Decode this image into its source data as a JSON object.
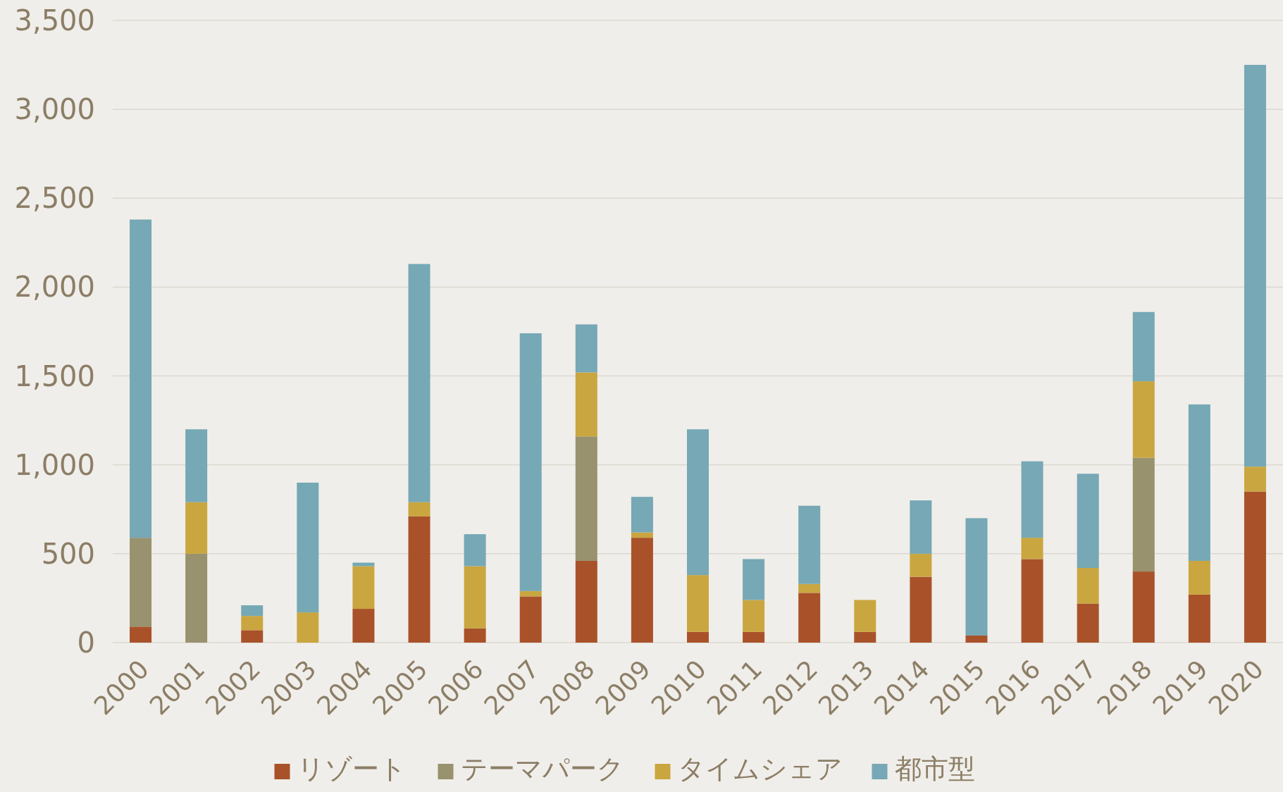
{
  "chart_data": {
    "type": "bar",
    "stacked": true,
    "legend": "bottom",
    "grid": "y",
    "categories": [
      "2000",
      "2001",
      "2002",
      "2003",
      "2004",
      "2005",
      "2006",
      "2007",
      "2008",
      "2009",
      "2010",
      "2011",
      "2012",
      "2013",
      "2014",
      "2015",
      "2016",
      "2017",
      "2018",
      "2019",
      "2020"
    ],
    "ylim": [
      0,
      3500
    ],
    "yticks": [
      {
        "value": 0,
        "label": "0"
      },
      {
        "value": 500,
        "label": "500"
      },
      {
        "value": 1000,
        "label": "1,000"
      },
      {
        "value": 1500,
        "label": "1,500"
      },
      {
        "value": 2000,
        "label": "2,000"
      },
      {
        "value": 2500,
        "label": "2,500"
      },
      {
        "value": 3000,
        "label": "3,000"
      },
      {
        "value": 3500,
        "label": "3,500"
      }
    ],
    "series": [
      {
        "name": "リゾート",
        "color": "#a9522a",
        "values": [
          90,
          0,
          70,
          0,
          190,
          710,
          80,
          260,
          460,
          590,
          60,
          60,
          280,
          60,
          370,
          40,
          470,
          220,
          400,
          270,
          850
        ]
      },
      {
        "name": "テーマパーク",
        "color": "#98926e",
        "values": [
          500,
          500,
          0,
          0,
          0,
          0,
          0,
          0,
          700,
          0,
          0,
          0,
          0,
          0,
          0,
          0,
          0,
          0,
          640,
          0,
          0
        ]
      },
      {
        "name": "タイムシェア",
        "color": "#c9a640",
        "values": [
          0,
          290,
          80,
          170,
          240,
          80,
          350,
          30,
          360,
          30,
          320,
          180,
          50,
          180,
          130,
          0,
          120,
          200,
          430,
          190,
          140
        ]
      },
      {
        "name": "都市型",
        "color": "#76a8b5",
        "values": [
          1790,
          410,
          60,
          730,
          20,
          1340,
          180,
          1450,
          270,
          200,
          820,
          230,
          440,
          0,
          300,
          660,
          430,
          530,
          390,
          880,
          2260
        ]
      }
    ]
  }
}
